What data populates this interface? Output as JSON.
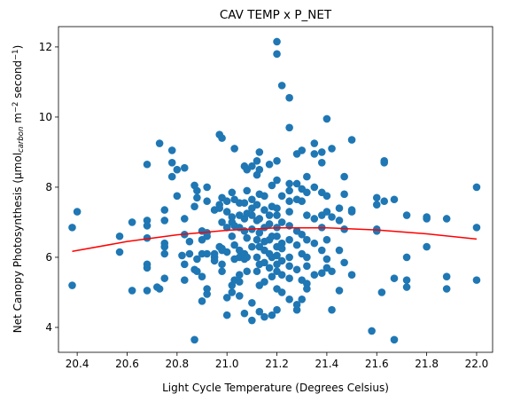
{
  "chart_data": {
    "type": "scatter",
    "title": "CAV TEMP x P_NET",
    "xlabel": "Light Cycle Temperature (Degrees Celsius)",
    "ylabel": [
      {
        "text": "Net Canopy Photosynthesis (µmol",
        "style": "normal"
      },
      {
        "text": "carbon",
        "style": "sub"
      },
      {
        "text": " m",
        "style": "normal"
      },
      {
        "text": "−2",
        "style": "sup"
      },
      {
        "text": " second",
        "style": "normal"
      },
      {
        "text": "−1",
        "style": "sup"
      },
      {
        "text": ")",
        "style": "normal"
      }
    ],
    "xlim": [
      20.325,
      22.064
    ],
    "ylim": [
      3.29,
      12.58
    ],
    "xticks": [
      20.4,
      20.6,
      20.8,
      {
        "value": 21,
        "label": "21.0"
      },
      21.2,
      21.4,
      21.6,
      21.8,
      {
        "value": 22,
        "label": "22.0"
      }
    ],
    "yticks": [
      4,
      6,
      8,
      10,
      12
    ],
    "grid": false,
    "series": [
      {
        "type": "scatter",
        "color": "#1f77b4",
        "x": [
          20.38,
          20.38,
          20.4,
          20.57,
          20.57,
          20.62,
          20.62,
          20.68,
          20.68,
          20.68,
          20.68,
          20.68,
          20.68,
          20.68,
          20.72,
          20.73,
          20.73,
          20.75,
          20.75,
          20.75,
          20.75,
          20.75,
          20.75,
          20.78,
          20.78,
          20.78,
          20.8,
          20.8,
          20.82,
          20.83,
          20.83,
          20.83,
          20.83,
          20.83,
          20.85,
          20.85,
          20.87,
          20.87,
          20.87,
          20.87,
          20.88,
          20.88,
          20.88,
          20.88,
          20.9,
          20.9,
          20.9,
          20.9,
          20.9,
          20.92,
          20.92,
          20.92,
          20.92,
          20.92,
          20.92,
          20.92,
          20.95,
          20.95,
          20.95,
          20.95,
          20.97,
          20.97,
          20.97,
          20.97,
          20.98,
          20.98,
          20.98,
          20.98,
          20.98,
          20.98,
          20.98,
          21.0,
          21.0,
          21.0,
          21.0,
          21.0,
          21.0,
          21.02,
          21.02,
          21.02,
          21.02,
          21.02,
          21.02,
          21.03,
          21.03,
          21.03,
          21.03,
          21.03,
          21.03,
          21.05,
          21.05,
          21.05,
          21.05,
          21.05,
          21.05,
          21.05,
          21.05,
          21.07,
          21.07,
          21.07,
          21.07,
          21.07,
          21.07,
          21.07,
          21.08,
          21.08,
          21.08,
          21.08,
          21.08,
          21.08,
          21.1,
          21.1,
          21.1,
          21.1,
          21.1,
          21.1,
          21.1,
          21.1,
          21.12,
          21.12,
          21.12,
          21.12,
          21.12,
          21.12,
          21.12,
          21.13,
          21.13,
          21.13,
          21.13,
          21.13,
          21.13,
          21.13,
          21.13,
          21.13,
          21.15,
          21.15,
          21.15,
          21.15,
          21.15,
          21.15,
          21.15,
          21.15,
          21.17,
          21.17,
          21.17,
          21.17,
          21.17,
          21.17,
          21.18,
          21.18,
          21.18,
          21.18,
          21.18,
          21.18,
          21.2,
          21.2,
          21.2,
          21.2,
          21.2,
          21.2,
          21.2,
          21.2,
          21.2,
          21.2,
          21.2,
          21.2,
          21.2,
          21.2,
          21.22,
          21.22,
          21.22,
          21.22,
          21.22,
          21.22,
          21.22,
          21.22,
          21.25,
          21.25,
          21.25,
          21.25,
          21.25,
          21.25,
          21.25,
          21.25,
          21.25,
          21.25,
          21.25,
          21.25,
          21.28,
          21.28,
          21.28,
          21.28,
          21.28,
          21.28,
          21.28,
          21.28,
          21.3,
          21.3,
          21.3,
          21.3,
          21.3,
          21.3,
          21.3,
          21.32,
          21.32,
          21.32,
          21.32,
          21.32,
          21.32,
          21.32,
          21.32,
          21.35,
          21.35,
          21.35,
          21.35,
          21.35,
          21.35,
          21.38,
          21.38,
          21.38,
          21.38,
          21.38,
          21.38,
          21.38,
          21.4,
          21.4,
          21.4,
          21.4,
          21.4,
          21.4,
          21.42,
          21.42,
          21.42,
          21.42,
          21.45,
          21.45,
          21.45,
          21.45,
          21.47,
          21.47,
          21.47,
          21.47,
          21.5,
          21.5,
          21.5,
          21.5,
          21.58,
          21.6,
          21.6,
          21.6,
          21.6,
          21.62,
          21.63,
          21.63,
          21.63,
          21.67,
          21.67,
          21.67,
          21.72,
          21.72,
          21.72,
          21.72,
          21.8,
          21.8,
          21.8,
          21.88,
          21.88,
          21.88,
          22.0,
          22.0,
          22.0
        ],
        "values": [
          6.85,
          5.2,
          7.3,
          6.6,
          6.15,
          7.0,
          5.05,
          8.65,
          7.05,
          6.9,
          6.55,
          5.8,
          5.7,
          5.05,
          5.15,
          9.25,
          5.1,
          7.35,
          7.05,
          6.4,
          6.3,
          6.1,
          5.4,
          9.05,
          8.7,
          8.3,
          8.5,
          7.75,
          6.05,
          8.55,
          6.65,
          5.35,
          7.1,
          5.8,
          6.1,
          6.45,
          8.05,
          7.45,
          5.65,
          3.65,
          7.9,
          7.7,
          5.95,
          5.6,
          6.75,
          6.5,
          6.1,
          5.45,
          4.75,
          8.0,
          7.6,
          6.7,
          6.6,
          6.1,
          5.1,
          4.95,
          7.35,
          6.1,
          6.0,
          5.9,
          9.5,
          7.5,
          7.4,
          6.3,
          9.4,
          7.7,
          7.0,
          6.25,
          6.2,
          5.8,
          5.6,
          7.6,
          7.3,
          6.85,
          6.15,
          4.35,
          4.85,
          7.85,
          7.15,
          7.0,
          6.6,
          5.0,
          5.2,
          9.1,
          7.65,
          6.9,
          6.35,
          5.95,
          5.35,
          7.55,
          7.2,
          6.85,
          6.2,
          6.0,
          5.5,
          5.3,
          4.9,
          8.6,
          7.55,
          7.1,
          6.75,
          6.1,
          5.95,
          4.4,
          8.5,
          7.9,
          7.25,
          6.55,
          6.0,
          5.6,
          8.6,
          7.65,
          7.4,
          7.2,
          6.8,
          6.3,
          4.7,
          4.2,
          8.75,
          8.35,
          7.5,
          7.05,
          6.5,
          6.0,
          5.6,
          9.0,
          8.5,
          7.8,
          7.1,
          6.7,
          6.3,
          5.8,
          5.2,
          4.45,
          7.75,
          7.35,
          6.85,
          6.45,
          6.2,
          5.85,
          5.3,
          4.3,
          8.65,
          7.2,
          6.95,
          6.5,
          6.1,
          5.7,
          8.05,
          7.45,
          6.6,
          6.0,
          5.45,
          4.35,
          12.15,
          11.8,
          8.75,
          8.2,
          7.4,
          7.2,
          6.85,
          6.6,
          6.3,
          6.05,
          5.8,
          5.6,
          5.1,
          4.5,
          10.9,
          7.75,
          7.0,
          6.4,
          6.25,
          5.9,
          5.5,
          5.0,
          10.55,
          9.7,
          8.1,
          7.9,
          7.6,
          7.3,
          6.9,
          6.5,
          6.0,
          5.75,
          5.4,
          4.8,
          8.95,
          8.1,
          7.65,
          6.75,
          6.35,
          5.65,
          4.5,
          4.65,
          9.05,
          7.95,
          7.6,
          6.65,
          6.1,
          5.35,
          4.8,
          8.3,
          7.85,
          7.2,
          6.5,
          6.0,
          5.75,
          5.25,
          5.1,
          9.25,
          8.95,
          8.0,
          7.1,
          6.4,
          5.5,
          9.0,
          8.7,
          7.85,
          7.2,
          6.85,
          6.2,
          5.55,
          9.95,
          7.75,
          7.3,
          6.5,
          5.95,
          5.7,
          9.1,
          7.15,
          5.6,
          4.5,
          7.4,
          7.05,
          6.2,
          5.05,
          8.3,
          7.8,
          6.8,
          5.85,
          9.35,
          7.3,
          7.35,
          5.5,
          3.9,
          7.7,
          7.5,
          6.8,
          6.75,
          5.0,
          8.75,
          8.7,
          7.6,
          7.65,
          5.4,
          3.65,
          7.2,
          6.0,
          5.35,
          5.15,
          7.15,
          7.1,
          6.3,
          7.1,
          5.45,
          5.1,
          8.0,
          6.85,
          5.35
        ]
      },
      {
        "type": "line",
        "color": "#ff0000",
        "x": [
          20.38,
          20.6,
          20.8,
          21.0,
          21.2,
          21.4,
          21.6,
          21.8,
          22.0
        ],
        "values": [
          6.17,
          6.45,
          6.64,
          6.77,
          6.84,
          6.84,
          6.78,
          6.67,
          6.52
        ]
      }
    ]
  }
}
